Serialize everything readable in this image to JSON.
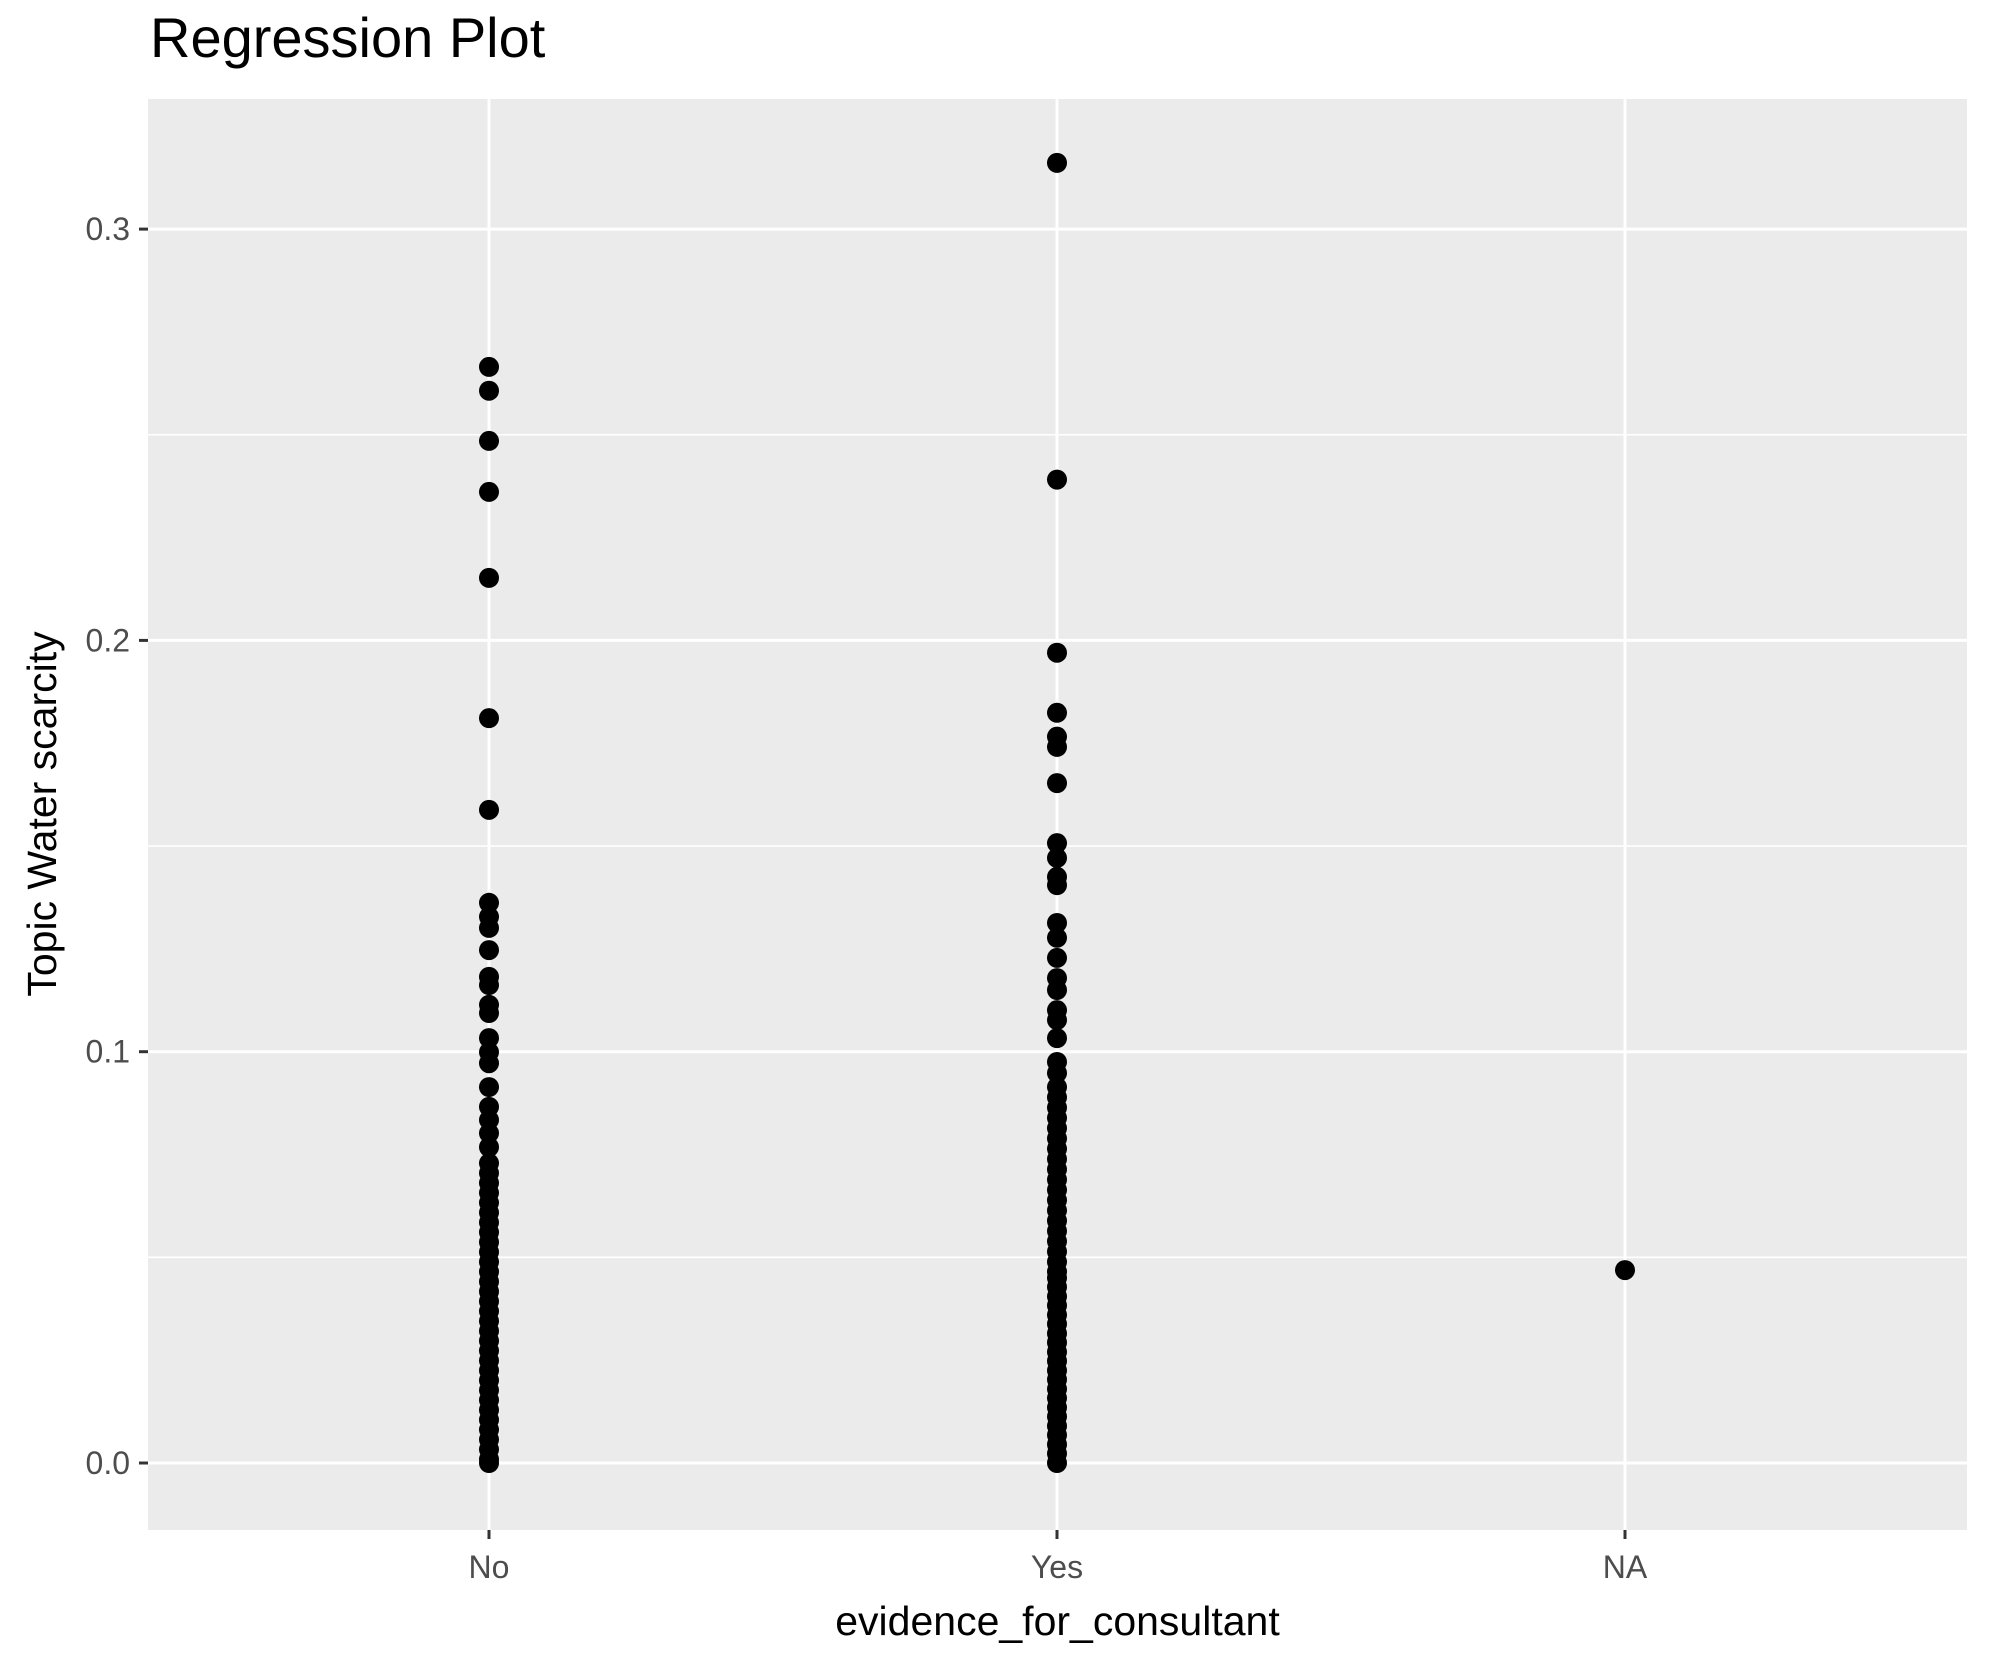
{
  "title": "Regression Plot",
  "x_axis": {
    "label": "evidence_for_consultant",
    "categories": [
      "No",
      "Yes",
      "NA"
    ]
  },
  "y_axis": {
    "label": "Topic Water scarcity",
    "tick_labels": [
      "0.0",
      "0.1",
      "0.2",
      "0.3"
    ],
    "tick_values": [
      0.0,
      0.1,
      0.2,
      0.3
    ],
    "minor_tick_values": [
      0.05,
      0.15,
      0.25
    ]
  },
  "colors": {
    "panel_background": "#EBEBEB",
    "gridline": "#FFFFFF",
    "point": "#000000",
    "tick_text": "#4D4D4D",
    "tick_mark": "#333333",
    "title_text": "#000000"
  },
  "chart_data": {
    "type": "scatter",
    "title": "Regression Plot",
    "xlabel": "evidence_for_consultant",
    "ylabel": "Topic Water scarcity",
    "categories": [
      "No",
      "Yes",
      "NA"
    ],
    "ylim": [
      -0.016,
      0.332
    ],
    "grid": "on",
    "legend": "none",
    "series": [
      {
        "name": "No",
        "values": [
          0.2665,
          0.2607,
          0.2485,
          0.2361,
          0.2152,
          0.1811,
          0.1588,
          0.1362,
          0.1328,
          0.1301,
          0.1247,
          0.1182,
          0.1162,
          0.1114,
          0.1094,
          0.1033,
          0.0999,
          0.0972,
          0.0914,
          0.0866,
          0.0834,
          0.0802,
          0.0768,
          0.0729,
          0.0705,
          0.0681,
          0.0657,
          0.0633,
          0.0609,
          0.0585,
          0.0561,
          0.0537,
          0.0513,
          0.0489,
          0.0465,
          0.0441,
          0.0417,
          0.0393,
          0.0369,
          0.0345,
          0.0321,
          0.0297,
          0.0273,
          0.0249,
          0.0225,
          0.0201,
          0.0177,
          0.0153,
          0.0129,
          0.0105,
          0.0081,
          0.0057,
          0.0033,
          0.0009,
          0.0
        ]
      },
      {
        "name": "Yes",
        "values": [
          0.3161,
          0.2391,
          0.197,
          0.1824,
          0.1766,
          0.1741,
          0.1653,
          0.1507,
          0.1471,
          0.1425,
          0.1405,
          0.1313,
          0.1277,
          0.1228,
          0.1179,
          0.115,
          0.1101,
          0.1077,
          0.1033,
          0.0975,
          0.0948,
          0.0914,
          0.0889,
          0.0864,
          0.0839,
          0.0814,
          0.0789,
          0.0764,
          0.0739,
          0.0714,
          0.0689,
          0.0664,
          0.0639,
          0.0614,
          0.0589,
          0.0564,
          0.0539,
          0.0514,
          0.0489,
          0.0465,
          0.045,
          0.0428,
          0.0405,
          0.0383,
          0.036,
          0.0338,
          0.0315,
          0.0293,
          0.027,
          0.0248,
          0.0225,
          0.0203,
          0.018,
          0.0158,
          0.0135,
          0.0113,
          0.009,
          0.0068,
          0.0045,
          0.0023,
          0.0
        ]
      },
      {
        "name": "NA",
        "values": [
          0.0469
        ]
      }
    ]
  }
}
